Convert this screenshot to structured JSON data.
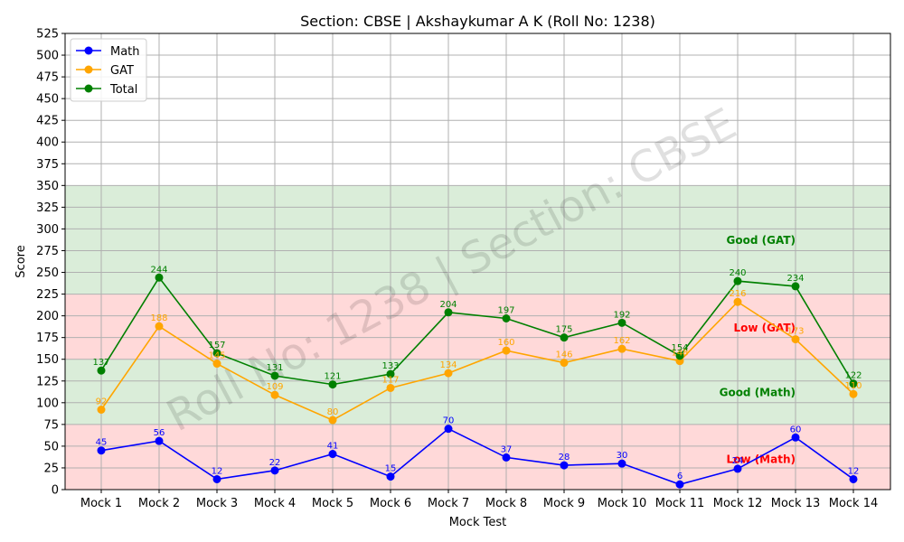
{
  "chart_data": {
    "type": "line",
    "title": "Section: CBSE | Akshaykumar A K (Roll No: 1238)",
    "xlabel": "Mock Test",
    "ylabel": "Score",
    "ylim": [
      0,
      525
    ],
    "y_ticks": [
      0,
      25,
      50,
      75,
      100,
      125,
      150,
      175,
      200,
      225,
      250,
      275,
      300,
      325,
      350,
      375,
      400,
      425,
      450,
      475,
      500,
      525
    ],
    "grid": true,
    "legend_position": "top-left",
    "categories": [
      "Mock 1",
      "Mock 2",
      "Mock 3",
      "Mock 4",
      "Mock 5",
      "Mock 6",
      "Mock 7",
      "Mock 8",
      "Mock 9",
      "Mock 10",
      "Mock 11",
      "Mock 12",
      "Mock 13",
      "Mock 14"
    ],
    "series": [
      {
        "name": "Math",
        "color": "#0000ff",
        "values": [
          45,
          56,
          12,
          22,
          41,
          15,
          70,
          37,
          28,
          30,
          6,
          24,
          60,
          12
        ]
      },
      {
        "name": "GAT",
        "color": "#ffa500",
        "values": [
          92,
          188,
          145,
          109,
          80,
          117,
          134,
          160,
          146,
          162,
          148,
          216,
          173,
          110
        ]
      },
      {
        "name": "Total",
        "color": "#008000",
        "values": [
          137,
          244,
          157,
          131,
          121,
          133,
          204,
          197,
          175,
          192,
          154,
          240,
          234,
          122
        ]
      }
    ],
    "bands": [
      {
        "from": 0,
        "to": 75,
        "color": "#ffd9d9",
        "label": "Low (Math)",
        "label_color": "#ff0000",
        "label_y": 35
      },
      {
        "from": 75,
        "to": 150,
        "color": "#daedd9",
        "label": "Good (Math)",
        "label_color": "#008000",
        "label_y": 112
      },
      {
        "from": 150,
        "to": 225,
        "color": "#ffd9d9",
        "label": "Low (GAT)",
        "label_color": "#ff0000",
        "label_y": 186
      },
      {
        "from": 225,
        "to": 350,
        "color": "#daedd9",
        "label": "Good (GAT)",
        "label_color": "#008000",
        "label_y": 287
      }
    ],
    "watermark": "Roll No: 1238 | Section: CBSE"
  }
}
